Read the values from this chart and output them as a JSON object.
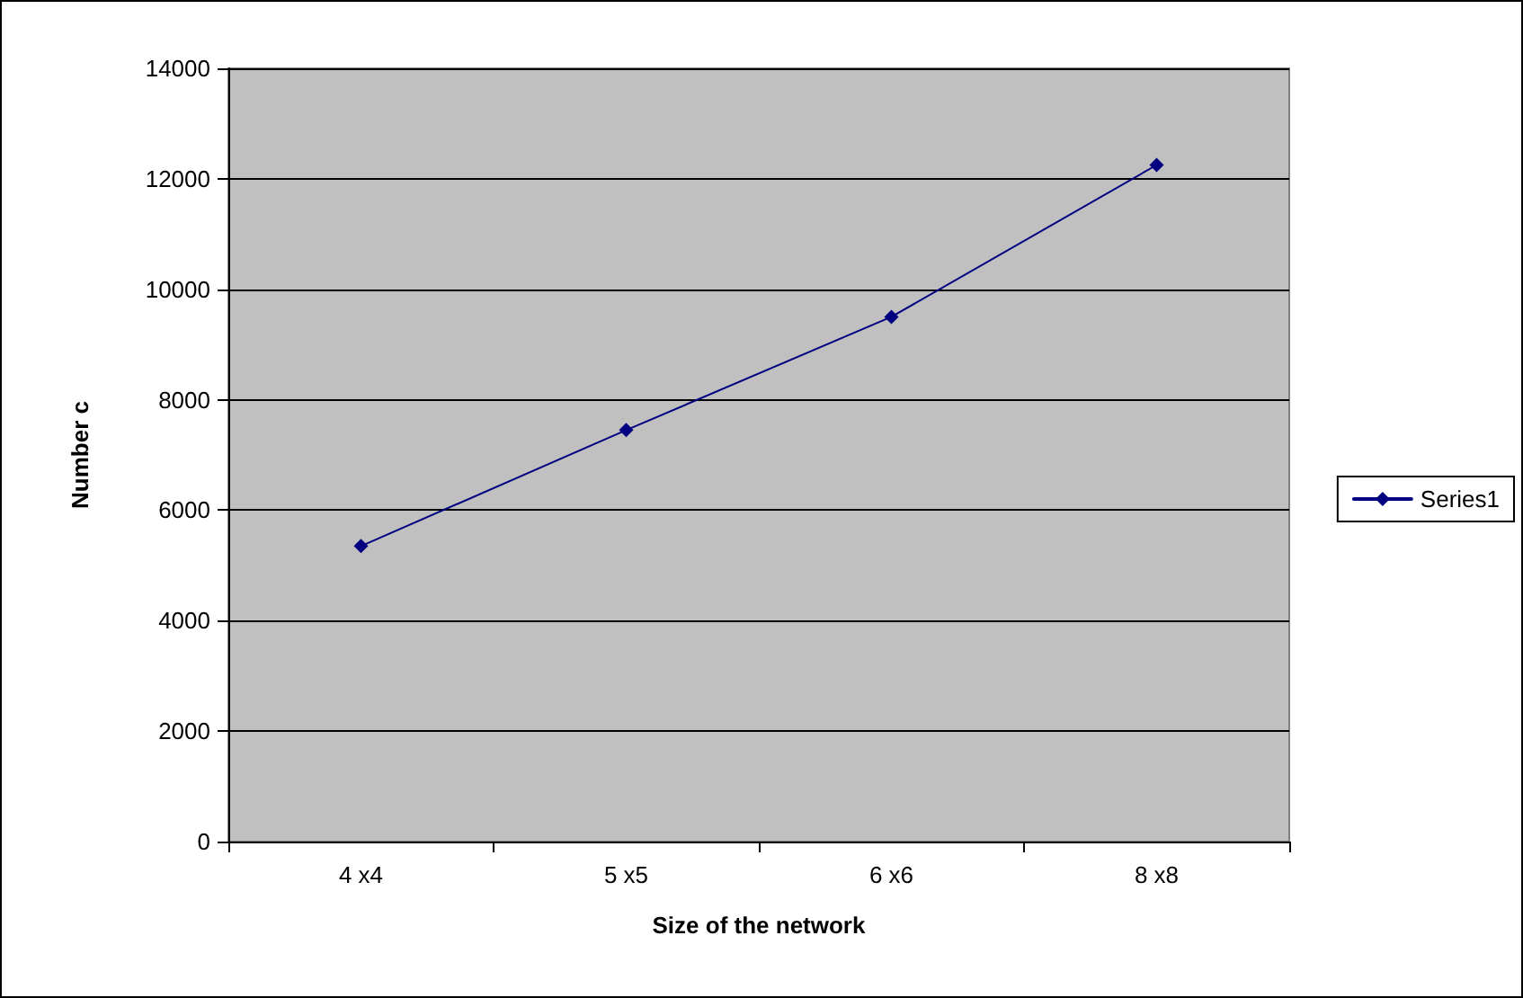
{
  "chart_data": {
    "type": "line",
    "xlabel": "Size of the network",
    "ylabel": "Number c",
    "categories": [
      "4 x4",
      "5 x5",
      "6 x6",
      "8 x8"
    ],
    "series": [
      {
        "name": "Series1",
        "color": "#000080",
        "values": [
          5350,
          7450,
          9500,
          12250
        ]
      }
    ],
    "ylim": [
      0,
      14000
    ],
    "yticks": [
      0,
      2000,
      4000,
      6000,
      8000,
      10000,
      12000,
      14000
    ],
    "grid": "y",
    "legend": "right",
    "marker": "diamond",
    "line_style": "solid"
  }
}
